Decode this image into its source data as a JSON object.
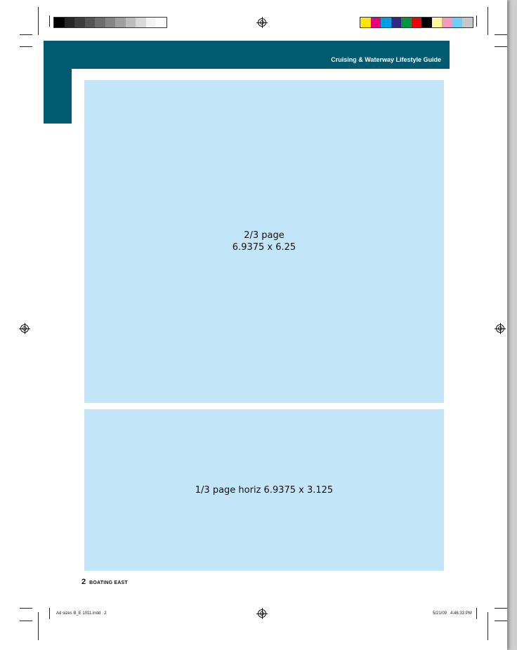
{
  "header": {
    "title": "Cruising & Waterway Lifestyle Guide",
    "color": "#005b71"
  },
  "ads": [
    {
      "line1": "2/3 page",
      "line2": "6.9375 x 6.25",
      "color": "#c3e5f8"
    },
    {
      "line1": "1/3 page horiz 6.9375 x 3.125",
      "color": "#c3e5f8"
    }
  ],
  "footer": {
    "page_number": "2",
    "publication": "BOATING EAST"
  },
  "slug": {
    "file": "Ad sizes B_E 1011.indd   2",
    "timestamp": "5/21/09   4:46:33 PM"
  },
  "marks": {
    "registration": "registration-mark-icon",
    "gray_steps": [
      "#000000",
      "#262626",
      "#3d3d3d",
      "#555555",
      "#6d6d6d",
      "#858585",
      "#a0a0a0",
      "#bdbdbd",
      "#d9d9d9",
      "#f3f3f3",
      "#ffffff"
    ],
    "color_bar": [
      "#ffe600",
      "#e6007e",
      "#009fe3",
      "#312783",
      "#009640",
      "#e30613",
      "#000000",
      "#fff799",
      "#f49ac1",
      "#6dcff6",
      "#c8c8c8"
    ]
  }
}
